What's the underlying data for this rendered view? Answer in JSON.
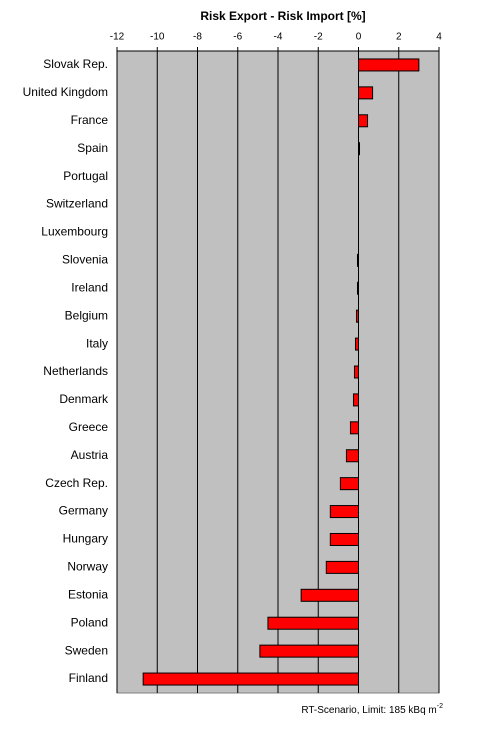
{
  "chart_data": {
    "type": "barh",
    "title": "Risk Export - Risk Import  [%]",
    "categories": [
      "Slovak Rep.",
      "United Kingdom",
      "France",
      "Spain",
      "Portugal",
      "Switzerland",
      "Luxembourg",
      "Slovenia",
      "Ireland",
      "Belgium",
      "Italy",
      "Netherlands",
      "Denmark",
      "Greece",
      "Austria",
      "Czech Rep.",
      "Germany",
      "Hungary",
      "Norway",
      "Estonia",
      "Poland",
      "Sweden",
      "Finland"
    ],
    "values": [
      3.0,
      0.7,
      0.45,
      0.05,
      0,
      0,
      0,
      -0.05,
      -0.05,
      -0.1,
      -0.15,
      -0.2,
      -0.25,
      -0.4,
      -0.6,
      -0.9,
      -1.4,
      -1.4,
      -1.6,
      -2.85,
      -4.5,
      -4.9,
      -10.7
    ],
    "color": "#ff0000",
    "xlim": [
      -12,
      4
    ],
    "xticks": [
      -12,
      -10,
      -8,
      -6,
      -4,
      -2,
      0,
      2,
      4
    ],
    "grid": true,
    "note": "RT-Scenario, Limit: 185 kBq m",
    "note_superscript": "-2"
  }
}
